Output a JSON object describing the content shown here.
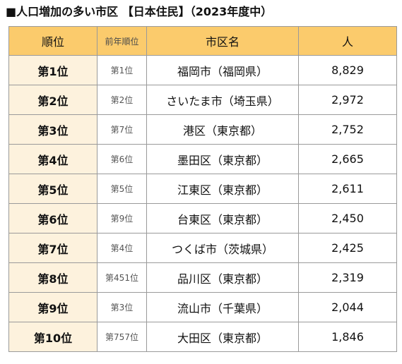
{
  "title": "■人口増加の多い市区 【日本住民】（2023年度中）",
  "headers": {
    "rank": "順位",
    "prev": "前年順位",
    "city": "市区名",
    "people": "人"
  },
  "rows": [
    {
      "rank": "第1位",
      "prev": "第1位",
      "city": "福岡市（福岡県）",
      "people": "8,829"
    },
    {
      "rank": "第2位",
      "prev": "第2位",
      "city": "さいたま市（埼玉県）",
      "people": "2,972"
    },
    {
      "rank": "第3位",
      "prev": "第7位",
      "city": "港区（東京都）",
      "people": "2,752"
    },
    {
      "rank": "第4位",
      "prev": "第6位",
      "city": "墨田区（東京都）",
      "people": "2,665"
    },
    {
      "rank": "第5位",
      "prev": "第5位",
      "city": "江東区（東京都）",
      "people": "2,611"
    },
    {
      "rank": "第6位",
      "prev": "第9位",
      "city": "台東区（東京都）",
      "people": "2,450"
    },
    {
      "rank": "第7位",
      "prev": "第4位",
      "city": "つくば市（茨城県）",
      "people": "2,425"
    },
    {
      "rank": "第8位",
      "prev": "第451位",
      "city": "品川区（東京都）",
      "people": "2,319"
    },
    {
      "rank": "第9位",
      "prev": "第3位",
      "city": "流山市（千葉県）",
      "people": "2,044"
    },
    {
      "rank": "第10位",
      "prev": "第757位",
      "city": "大田区（東京都）",
      "people": "1,846"
    }
  ],
  "colors": {
    "header_bg": "#fbcb6c",
    "rank_cell_bg": "#fdf2dd",
    "border": "#9a9a9a"
  }
}
